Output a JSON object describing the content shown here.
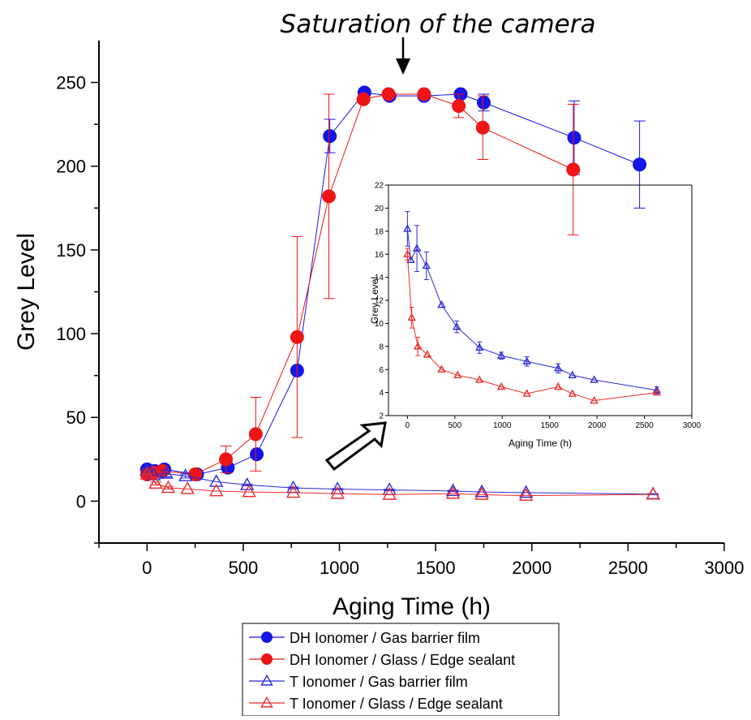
{
  "chart_data": [
    {
      "type": "scatter",
      "annotation": "Saturation of the camera",
      "xlabel": "Aging Time (h)",
      "ylabel": "Grey Level",
      "xlim": [
        -250,
        3000
      ],
      "ylim": [
        -25,
        275
      ],
      "xticks": [
        "0",
        "500",
        "1000",
        "1500",
        "2000",
        "2500",
        "3000"
      ],
      "yticks": [
        "0",
        "50",
        "100",
        "150",
        "200",
        "250"
      ],
      "legend_position": "bottom-center",
      "series": [
        {
          "name": "DH Ionomer / Gas barrier film",
          "color": "#1515e6",
          "marker": "filled-circle",
          "x": [
            0,
            40,
            90,
            260,
            420,
            570,
            780,
            950,
            1130,
            1260,
            1440,
            1630,
            1750,
            2220,
            2560
          ],
          "y": [
            19,
            18,
            19,
            16,
            20,
            28,
            78,
            218,
            244,
            242,
            242,
            243,
            238,
            217,
            201
          ],
          "err": [
            0,
            0,
            0,
            0,
            0,
            0,
            0,
            10,
            0,
            0,
            0,
            0,
            5,
            22,
            26
          ]
        },
        {
          "name": "DH Ionomer / Glass / Edge sealant",
          "color": "#ee1515",
          "marker": "filled-circle",
          "x": [
            0,
            35,
            80,
            250,
            410,
            565,
            780,
            945,
            1125,
            1255,
            1440,
            1620,
            1745,
            2215
          ],
          "y": [
            16,
            17,
            18,
            16,
            25,
            40,
            98,
            182,
            240,
            243,
            243,
            236,
            223,
            198
          ],
          "err": [
            0,
            0,
            0,
            0,
            8,
            22,
            60,
            61,
            0,
            0,
            0,
            7,
            19,
            39
          ]
        },
        {
          "name": "T Ionomer / Gas barrier film",
          "color": "#2a2ad6",
          "marker": "open-triangle",
          "x": [
            0,
            35,
            100,
            200,
            360,
            520,
            760,
            990,
            1260,
            1590,
            1740,
            1970,
            2630
          ],
          "y": [
            18.2,
            15.5,
            16.5,
            15,
            11.6,
            9.7,
            7.9,
            7.2,
            6.7,
            6.1,
            5.5,
            5.1,
            4.2
          ],
          "err": [
            1.5,
            0,
            2,
            1.2,
            0,
            0.5,
            0.5,
            0.3,
            0.4,
            0.4,
            0,
            0,
            0.3
          ]
        },
        {
          "name": "T Ionomer / Glass / Edge sealant",
          "color": "#ee2a2a",
          "marker": "open-triangle",
          "x": [
            0,
            45,
            110,
            210,
            360,
            530,
            760,
            990,
            1260,
            1590,
            1740,
            1970,
            2630
          ],
          "y": [
            16,
            10.5,
            8,
            7.3,
            6,
            5.5,
            5.1,
            4.5,
            3.9,
            4.5,
            3.9,
            3.3,
            4
          ],
          "err": [
            0.5,
            0.9,
            0.8,
            0,
            0,
            0,
            0,
            0,
            0,
            0,
            0,
            0,
            0
          ]
        }
      ]
    },
    {
      "type": "scatter",
      "xlabel": "Aging Time (h)",
      "ylabel": "Grey Level",
      "xlim": [
        -200,
        3000
      ],
      "ylim": [
        2,
        22
      ],
      "xticks": [
        "0",
        "500",
        "1000",
        "1500",
        "2000",
        "2500",
        "3000"
      ],
      "yticks": [
        "2",
        "4",
        "6",
        "8",
        "10",
        "12",
        "14",
        "16",
        "18",
        "20",
        "22"
      ],
      "series_ref": [
        2,
        3
      ]
    }
  ]
}
